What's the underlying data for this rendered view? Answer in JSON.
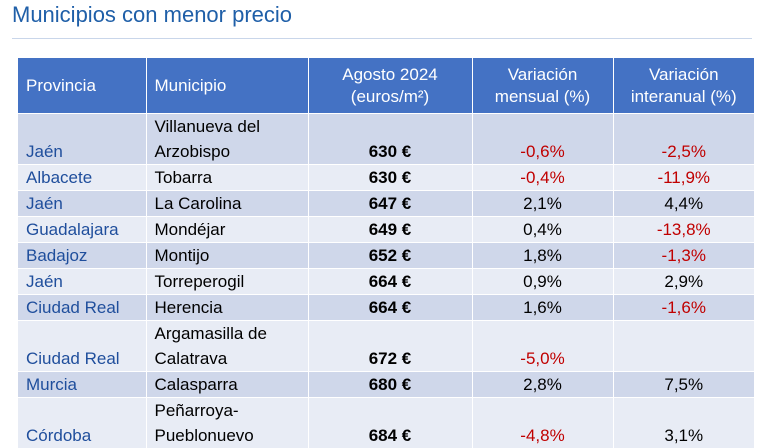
{
  "title": "Municipios con menor precio",
  "headers": {
    "provincia": "Provincia",
    "municipio": "Municipio",
    "precio_line1": "Agosto 2024",
    "precio_line2": "(euros/m²)",
    "mensual_line1": "Variación",
    "mensual_line2": "mensual (%)",
    "interanual_line1": "Variación",
    "interanual_line2": "interanual (%)"
  },
  "rows": [
    {
      "provincia": "Jaén",
      "municipio_l1": "Villanueva del",
      "municipio_l2": "Arzobispo",
      "precio": "630 €",
      "mensual": "-0,6%",
      "interanual": "-2,5%"
    },
    {
      "provincia": "Albacete",
      "municipio": "Tobarra",
      "precio": "630 €",
      "mensual": "-0,4%",
      "interanual": "-11,9%"
    },
    {
      "provincia": "Jaén",
      "municipio": "La Carolina",
      "precio": "647 €",
      "mensual": "2,1%",
      "interanual": "4,4%"
    },
    {
      "provincia": "Guadalajara",
      "municipio": "Mondéjar",
      "precio": "649 €",
      "mensual": "0,4%",
      "interanual": "-13,8%"
    },
    {
      "provincia": "Badajoz",
      "municipio": "Montijo",
      "precio": "652 €",
      "mensual": "1,8%",
      "interanual": "-1,3%"
    },
    {
      "provincia": "Jaén",
      "municipio": "Torreperogil",
      "precio": "664 €",
      "mensual": "0,9%",
      "interanual": "2,9%"
    },
    {
      "provincia": "Ciudad Real",
      "municipio": "Herencia",
      "precio": "664 €",
      "mensual": "1,6%",
      "interanual": "-1,6%"
    },
    {
      "provincia": "Ciudad Real",
      "municipio_l1": "Argamasilla de",
      "municipio_l2": "Calatrava",
      "precio": "672 €",
      "mensual": "-5,0%",
      "interanual": ""
    },
    {
      "provincia": "Murcia",
      "municipio": "Calasparra",
      "precio": "680 €",
      "mensual": "2,8%",
      "interanual": "7,5%"
    },
    {
      "provincia": "Córdoba",
      "municipio_l1": "Peñarroya-",
      "municipio_l2": "Pueblonuevo",
      "precio": "684 €",
      "mensual": "-4,8%",
      "interanual": "3,1%"
    }
  ],
  "colors": {
    "header_bg": "#4472c4",
    "row_dark": "#cfd7ea",
    "row_light": "#e8ecf5",
    "negative": "#c00000",
    "title": "#1f5fa8"
  }
}
